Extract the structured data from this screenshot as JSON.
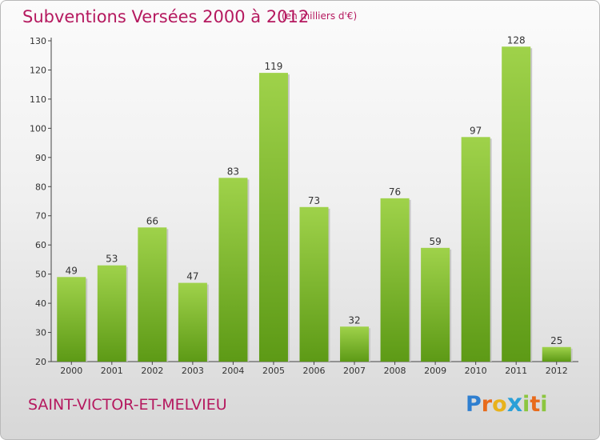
{
  "header": {
    "title": "Subventions Versées 2000 à 2012",
    "subtitle": "(en milliers d'€)"
  },
  "footer": {
    "commune": "SAINT-VICTOR-ET-MELVIEU",
    "logo_letters": [
      "P",
      "r",
      "o",
      "x",
      "i",
      "t",
      "i"
    ],
    "logo_colors": [
      "#2f7fd0",
      "#e86b1c",
      "#e8b21c",
      "#2aa0d8",
      "#8cc63f",
      "#e86b1c",
      "#8cc63f"
    ]
  },
  "colors": {
    "bar_light": "#9fd24a",
    "bar_dark": "#5d9a16",
    "text": "#b5195f"
  },
  "chart_data": {
    "type": "bar",
    "title": "Subventions Versées 2000 à 2012",
    "xlabel": "",
    "ylabel": "",
    "categories": [
      "2000",
      "2001",
      "2002",
      "2003",
      "2004",
      "2005",
      "2006",
      "2007",
      "2008",
      "2009",
      "2010",
      "2011",
      "2012"
    ],
    "values": [
      49,
      53,
      66,
      47,
      83,
      119,
      73,
      32,
      76,
      59,
      97,
      128,
      25
    ],
    "ylim": [
      20,
      130
    ],
    "yticks": [
      20,
      30,
      40,
      50,
      60,
      70,
      80,
      90,
      100,
      110,
      120,
      130
    ],
    "grid": false
  }
}
